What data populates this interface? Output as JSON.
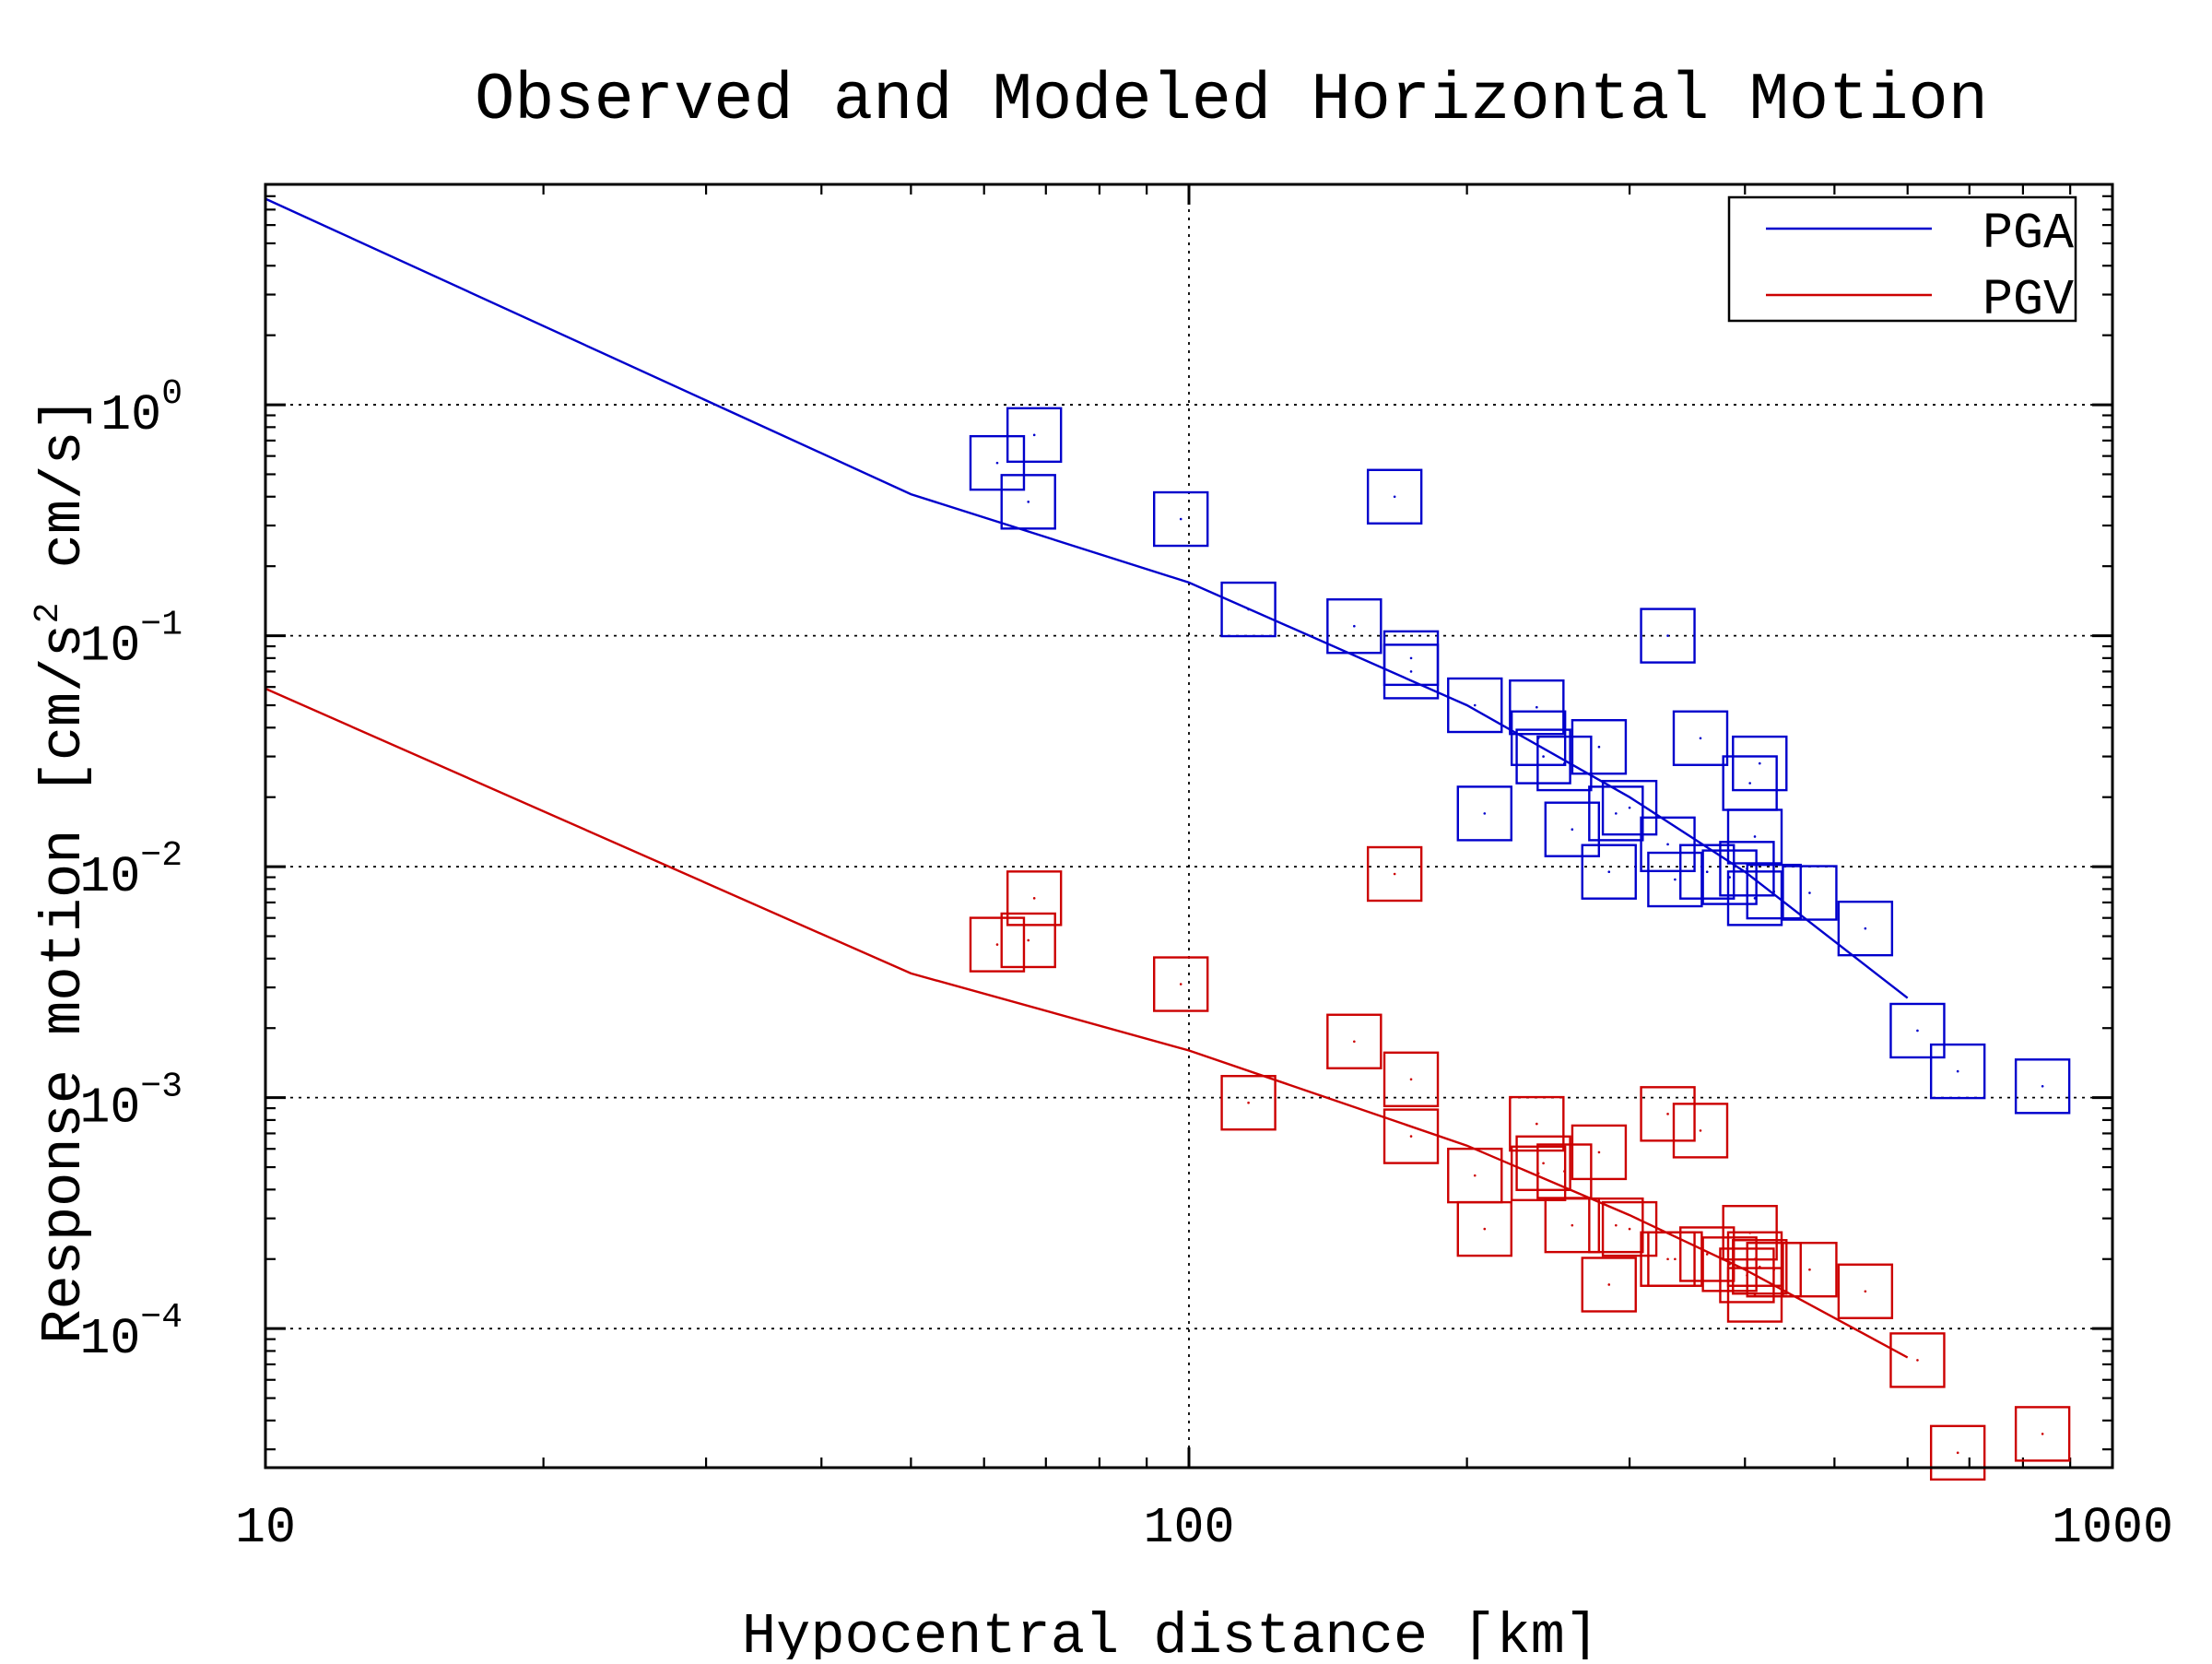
{
  "chart_data": {
    "type": "scatter",
    "title": "Observed and Modeled Horizontal Motion",
    "xlabel": "Hypocentral distance [km]",
    "ylabel_parts": [
      "Response motion [cm/s",
      "2",
      " cm/s]"
    ],
    "xscale": "log",
    "yscale": "log",
    "xlim": [
      10,
      1000
    ],
    "ylim": [
      2.5e-05,
      9.0
    ],
    "grid": true,
    "legend_position": "top-right",
    "x_ticks": [
      {
        "value": 10,
        "label": "10"
      },
      {
        "value": 100,
        "label": "100"
      },
      {
        "value": 1000,
        "label": "1000"
      }
    ],
    "y_ticks": [
      {
        "value": 1,
        "base": "10",
        "exp": "0"
      },
      {
        "value": 0.1,
        "base": "10",
        "exp": "−1"
      },
      {
        "value": 0.01,
        "base": "10",
        "exp": "−2"
      },
      {
        "value": 0.001,
        "base": "10",
        "exp": "−3"
      },
      {
        "value": 0.0001,
        "base": "10",
        "exp": "−4"
      }
    ],
    "series": [
      {
        "name": "PGA",
        "color": "#0000cc",
        "model_line": [
          [
            10,
            7.8
          ],
          [
            50,
            0.41
          ],
          [
            100,
            0.17
          ],
          [
            200,
            0.05
          ],
          [
            300,
            0.02
          ],
          [
            400,
            0.0095
          ],
          [
            600,
            0.0027
          ]
        ],
        "observations": [
          [
            62,
            0.56
          ],
          [
            67,
            0.38
          ],
          [
            68,
            0.74
          ],
          [
            98,
            0.32
          ],
          [
            116,
            0.13
          ],
          [
            151,
            0.11
          ],
          [
            167,
            0.4
          ],
          [
            174,
            0.08
          ],
          [
            174,
            0.07
          ],
          [
            204,
            0.05
          ],
          [
            209,
            0.017
          ],
          [
            238,
            0.049
          ],
          [
            239,
            0.036
          ],
          [
            242,
            0.03
          ],
          [
            255,
            0.028
          ],
          [
            260,
            0.0145
          ],
          [
            278,
            0.033
          ],
          [
            285,
            0.0095
          ],
          [
            290,
            0.017
          ],
          [
            300,
            0.018
          ],
          [
            330,
            0.1
          ],
          [
            330,
            0.0125
          ],
          [
            336,
            0.0088
          ],
          [
            358,
            0.036
          ],
          [
            364,
            0.0095
          ],
          [
            385,
            0.009
          ],
          [
            402,
            0.0098
          ],
          [
            405,
            0.023
          ],
          [
            410,
            0.0135
          ],
          [
            410,
            0.0073
          ],
          [
            415,
            0.028
          ],
          [
            430,
            0.0078
          ],
          [
            470,
            0.0077
          ],
          [
            540,
            0.0054
          ],
          [
            615,
            0.00195
          ],
          [
            680,
            0.0013
          ],
          [
            840,
            0.00112
          ]
        ]
      },
      {
        "name": "PGV",
        "color": "#cc0000",
        "model_line": [
          [
            10,
            0.059
          ],
          [
            50,
            0.00345
          ],
          [
            100,
            0.0016
          ],
          [
            200,
            0.00062
          ],
          [
            300,
            0.00031
          ],
          [
            400,
            0.00018
          ],
          [
            600,
            7.5e-05
          ]
        ],
        "observations": [
          [
            62,
            0.0046
          ],
          [
            67,
            0.0048
          ],
          [
            68,
            0.0073
          ],
          [
            98,
            0.0031
          ],
          [
            116,
            0.00095
          ],
          [
            151,
            0.00175
          ],
          [
            167,
            0.0093
          ],
          [
            174,
            0.0012
          ],
          [
            174,
            0.00068
          ],
          [
            204,
            0.00046
          ],
          [
            209,
            0.00027
          ],
          [
            238,
            0.00077
          ],
          [
            239,
            0.00047
          ],
          [
            242,
            0.00052
          ],
          [
            255,
            0.00048
          ],
          [
            260,
            0.00028
          ],
          [
            278,
            0.00058
          ],
          [
            285,
            0.000155
          ],
          [
            290,
            0.00028
          ],
          [
            300,
            0.00027
          ],
          [
            330,
            0.00085
          ],
          [
            330,
            0.0002
          ],
          [
            336,
            0.0002
          ],
          [
            358,
            0.00072
          ],
          [
            364,
            0.00021
          ],
          [
            385,
            0.00019
          ],
          [
            402,
            0.00017
          ],
          [
            405,
            0.00026
          ],
          [
            410,
            0.0002
          ],
          [
            410,
            0.00014
          ],
          [
            415,
            0.000185
          ],
          [
            430,
            0.00018
          ],
          [
            470,
            0.00018
          ],
          [
            540,
            0.000145
          ],
          [
            615,
            7.3e-05
          ],
          [
            680,
            2.9e-05
          ],
          [
            840,
            3.5e-05
          ]
        ]
      }
    ]
  }
}
